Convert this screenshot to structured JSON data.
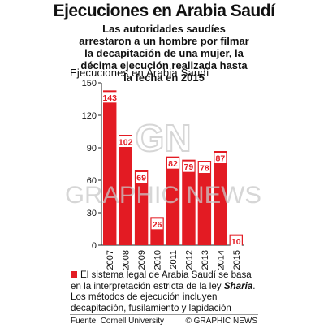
{
  "title": "Ejecuciones en Arabia Saudí",
  "subtitle": "Las autoridades saudíes arrestaron a un hombre por filmar la decapitación de una mujer, la décima ejecución realizada hasta la fecha en 2015",
  "chart_data": {
    "type": "bar",
    "title": "Ejecuciones en Arabia Saudí",
    "categories": [
      "2007",
      "2008",
      "2009",
      "2010",
      "2011",
      "2012",
      "2013",
      "2014",
      "2015"
    ],
    "values": [
      143,
      102,
      69,
      26,
      82,
      79,
      78,
      87,
      10
    ],
    "xlabel": "",
    "ylabel": "",
    "ylim": [
      0,
      150
    ],
    "yticks": [
      0,
      30,
      60,
      90,
      120,
      150
    ],
    "grid": false,
    "bar_color": "#e31b23",
    "legend": "none"
  },
  "footnote": {
    "text_before": "El sistema legal de Arabia Saudí se basa en la interpretación estricta de la ley ",
    "emphasis": "Sharia",
    "text_after": ". Los métodos de ejecución incluyen decapitación, fusilamiento y lapidación"
  },
  "source": "Fuente: Cornell University",
  "credit": "© GRAPHIC NEWS",
  "watermark": {
    "logo_text": "GN",
    "text": "GRAPHIC NEWS"
  },
  "colors": {
    "accent": "#e31b23",
    "watermark": "#c9c9c9"
  }
}
